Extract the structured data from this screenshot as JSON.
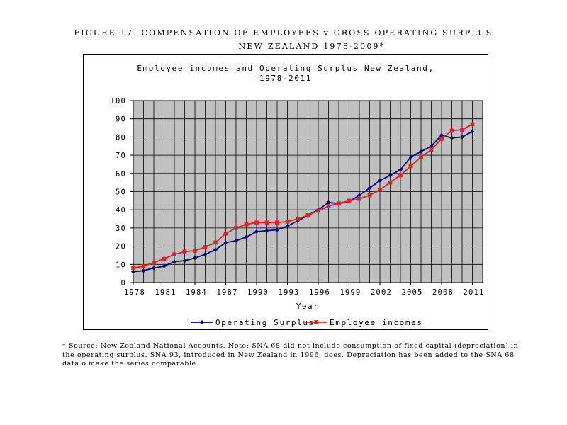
{
  "figure": {
    "title_line1": "FIGURE 17. COMPENSATION OF EMPLOYEES v GROSS OPERATING SURPLUS",
    "title_line2": "NEW ZEALAND 1978-2009*"
  },
  "chart_data": {
    "type": "line",
    "title_line1": "Employee incomes and Operating Surplus New Zealand,",
    "title_line2": "1978-2011",
    "xlabel": "Year",
    "ylabel": "",
    "xlim": [
      1978,
      2012
    ],
    "ylim": [
      0,
      100
    ],
    "x_ticks": [
      "1978",
      "1981",
      "1984",
      "1987",
      "1990",
      "1993",
      "1996",
      "1999",
      "2002",
      "2005",
      "2008",
      "2011"
    ],
    "y_ticks": [
      "0",
      "10",
      "20",
      "30",
      "40",
      "50",
      "60",
      "70",
      "80",
      "90",
      "100"
    ],
    "grid": true,
    "plot_background": "#c0c0c0",
    "legend_position": "bottom",
    "x": [
      1978,
      1979,
      1980,
      1981,
      1982,
      1983,
      1984,
      1985,
      1986,
      1987,
      1988,
      1989,
      1990,
      1991,
      1992,
      1993,
      1994,
      1995,
      1996,
      1997,
      1998,
      1999,
      2000,
      2001,
      2002,
      2003,
      2004,
      2005,
      2006,
      2007,
      2008,
      2009,
      2010,
      2011
    ],
    "series": [
      {
        "name": "Operating Surplus",
        "color": "#000080",
        "marker": "diamond",
        "values": [
          6,
          6.5,
          8,
          9,
          11.5,
          12,
          13.5,
          15.5,
          18,
          22,
          23,
          25,
          28,
          28.5,
          29,
          31,
          34,
          37,
          40,
          44,
          43.5,
          44.5,
          48,
          52,
          56,
          59,
          62,
          69,
          72,
          75,
          81,
          79.5,
          80,
          83
        ]
      },
      {
        "name": "Employee incomes",
        "color": "#dd2222",
        "marker": "square",
        "values": [
          8,
          9,
          11,
          13,
          15.5,
          17,
          17.5,
          19.5,
          22,
          27,
          30,
          32,
          33,
          33,
          33,
          33.5,
          35,
          37,
          39.5,
          42,
          43.5,
          45,
          46,
          48,
          51,
          55,
          59,
          64,
          69,
          73,
          79,
          83.5,
          84,
          87
        ]
      }
    ]
  },
  "footnote": {
    "text": "* Source: New Zealand National Accounts. Note: SNA 68 did not include consumption of fixed capital (depreciation) in the operating surplus. SNA 93, introduced in New Zealand in 1996, does. Depreciation has been added to the SNA 68 data o make the series comparable."
  }
}
